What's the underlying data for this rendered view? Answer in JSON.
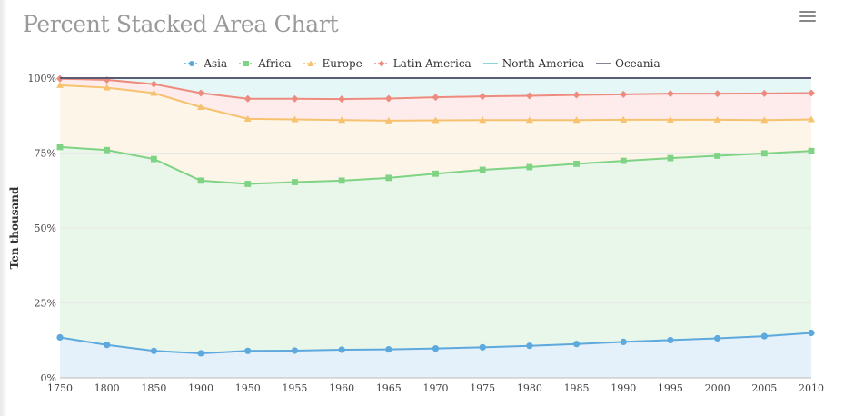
{
  "chart_data": {
    "type": "area",
    "stacked": "percent",
    "title": "Percent Stacked Area Chart",
    "ylabel": "Ten thousand",
    "xlabel": "",
    "x": [
      "1750",
      "1800",
      "1850",
      "1900",
      "1950",
      "1955",
      "1960",
      "1965",
      "1970",
      "1975",
      "1980",
      "1985",
      "1990",
      "1995",
      "2000",
      "2005",
      "2010"
    ],
    "yticks": [
      "0%",
      "25%",
      "50%",
      "75%",
      "100%"
    ],
    "ylim": [
      0,
      100
    ],
    "legend_position": "top-center",
    "cumulative_percent": [
      {
        "name": "Asia",
        "values": [
          13.5,
          11,
          9,
          8.2,
          9,
          9.1,
          9.4,
          9.5,
          9.8,
          10.2,
          10.7,
          11.3,
          12,
          12.6,
          13.2,
          13.9,
          15
        ]
      },
      {
        "name": "Africa",
        "values": [
          77,
          76,
          73,
          65.8,
          64.7,
          65.3,
          65.8,
          66.7,
          68.1,
          69.4,
          70.3,
          71.4,
          72.4,
          73.3,
          74.1,
          74.9,
          75.7
        ]
      },
      {
        "name": "Europe",
        "values": [
          97.6,
          96.8,
          95,
          90.3,
          86.4,
          86.2,
          86,
          85.8,
          85.9,
          86,
          86,
          86,
          86.1,
          86.1,
          86.1,
          86,
          86.2
        ]
      },
      {
        "name": "Latin America",
        "values": [
          99.8,
          99.4,
          98,
          95,
          93.1,
          93.1,
          93,
          93.2,
          93.6,
          93.9,
          94.1,
          94.4,
          94.6,
          94.8,
          94.8,
          94.9,
          95
        ]
      },
      {
        "name": "North America",
        "values": [
          100,
          100,
          100,
          100,
          100,
          100,
          100,
          100,
          100,
          100,
          100,
          100,
          100,
          100,
          100,
          100,
          100
        ]
      },
      {
        "name": "Oceania",
        "values": [
          100,
          100,
          100,
          100,
          100,
          100,
          100,
          100,
          100,
          100,
          100,
          100,
          100,
          100,
          100,
          100,
          100
        ]
      }
    ],
    "series_style": [
      {
        "name": "Asia",
        "color": "#5da8dd",
        "fill": "#e5f1fa",
        "marker": "circle"
      },
      {
        "name": "Africa",
        "color": "#7ed384",
        "fill": "#e8f7ea",
        "marker": "square"
      },
      {
        "name": "Europe",
        "color": "#f6c26f",
        "fill": "#fdf5e8",
        "marker": "triangle"
      },
      {
        "name": "Latin America",
        "color": "#ee8b7f",
        "fill": "#fdeceb",
        "marker": "diamond"
      },
      {
        "name": "North America",
        "color": "#62c8c8",
        "fill": "#e6f7f7",
        "marker": "none"
      },
      {
        "name": "Oceania",
        "color": "#5b5b73",
        "fill": "#ececf0",
        "marker": "none"
      }
    ]
  },
  "toolbar": {
    "menu_icon": "hamburger-menu-icon"
  }
}
